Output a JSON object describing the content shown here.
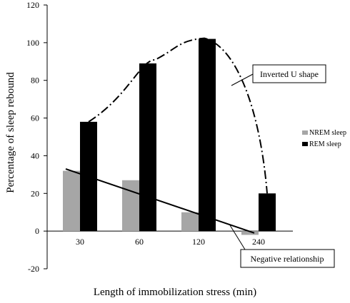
{
  "chart_data": {
    "type": "bar",
    "categories": [
      "30",
      "60",
      "120",
      "240"
    ],
    "series": [
      {
        "name": "NREM sleep",
        "values": [
          32,
          27,
          10,
          -2
        ],
        "color": "#a6a6a6"
      },
      {
        "name": "REM sleep",
        "values": [
          58,
          89,
          102,
          20
        ],
        "color": "#000000"
      }
    ],
    "xlabel": "Length  of immobilization stress (min)",
    "ylabel": "Percentage of sleep rebound",
    "ylim": [
      -20,
      120
    ],
    "yticks": [
      -20,
      0,
      20,
      40,
      60,
      80,
      100,
      120
    ],
    "grid": false,
    "legend_position": "right",
    "annotations": [
      {
        "text": "Inverted U shape",
        "refers_to": "REM sleep"
      },
      {
        "text": "Negative relationship",
        "refers_to": "NREM sleep"
      }
    ]
  }
}
